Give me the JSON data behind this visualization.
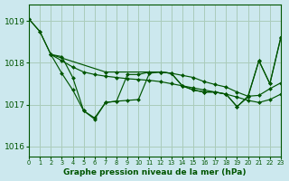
{
  "title": "Graphe pression niveau de la mer (hPa)",
  "bg_color": "#cce8ee",
  "grid_color": "#aaccbb",
  "line_color": "#005500",
  "xlim": [
    0,
    23
  ],
  "ylim": [
    1015.75,
    1019.4
  ],
  "yticks": [
    1016,
    1017,
    1018,
    1019
  ],
  "xtick_labels": [
    "0",
    "1",
    "2",
    "3",
    "4",
    "5",
    "6",
    "7",
    "8",
    "9",
    "10",
    "11",
    "12",
    "13",
    "14",
    "15",
    "16",
    "17",
    "18",
    "19",
    "20",
    "21",
    "22",
    "23"
  ],
  "series": [
    {
      "x": [
        0,
        1,
        2,
        3,
        4,
        5,
        6,
        7,
        8,
        9,
        10,
        11,
        12,
        13,
        14,
        15,
        16,
        17,
        18,
        19,
        20,
        21,
        22,
        23
      ],
      "y": [
        1019.05,
        1018.75,
        1018.2,
        1018.15,
        1017.65,
        1016.85,
        1016.68,
        1017.05,
        1017.08,
        1017.1,
        1017.12,
        1017.75,
        1017.78,
        1017.75,
        1017.45,
        1017.35,
        1017.3,
        1017.3,
        1017.25,
        1016.95,
        1017.2,
        1018.05,
        1017.5,
        1018.6
      ]
    },
    {
      "x": [
        2,
        3,
        4,
        5,
        6,
        7,
        8,
        9,
        10,
        11,
        12,
        13,
        14,
        15,
        16,
        17,
        18,
        19,
        20,
        21,
        22,
        23
      ],
      "y": [
        1018.2,
        1018.05,
        1017.9,
        1017.78,
        1017.72,
        1017.68,
        1017.65,
        1017.62,
        1017.6,
        1017.58,
        1017.55,
        1017.5,
        1017.45,
        1017.4,
        1017.35,
        1017.3,
        1017.25,
        1017.18,
        1017.1,
        1017.05,
        1017.12,
        1017.25
      ]
    },
    {
      "x": [
        0,
        1,
        2,
        7,
        8,
        12,
        13,
        14,
        15,
        16,
        17,
        18,
        19,
        20,
        21,
        22,
        23
      ],
      "y": [
        1019.05,
        1018.75,
        1018.2,
        1017.78,
        1017.78,
        1017.78,
        1017.75,
        1017.7,
        1017.65,
        1017.55,
        1017.48,
        1017.42,
        1017.3,
        1017.2,
        1017.22,
        1017.38,
        1017.52
      ]
    },
    {
      "x": [
        2,
        3,
        4,
        5,
        6,
        7,
        8,
        9,
        10,
        11,
        12,
        13,
        14,
        15,
        16,
        17,
        18,
        19,
        20,
        21,
        22,
        23
      ],
      "y": [
        1018.2,
        1017.75,
        1017.35,
        1016.85,
        1016.65,
        1017.05,
        1017.08,
        1017.72,
        1017.72,
        1017.78,
        1017.78,
        1017.75,
        1017.45,
        1017.35,
        1017.3,
        1017.3,
        1017.25,
        1016.95,
        1017.18,
        1018.05,
        1017.5,
        1018.62
      ]
    }
  ]
}
